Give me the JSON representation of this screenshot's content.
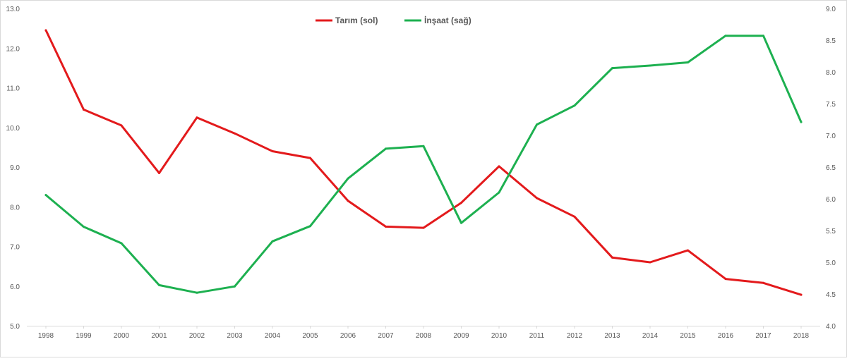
{
  "chart_data": {
    "type": "line",
    "title": "",
    "x": [
      "1998",
      "1999",
      "2000",
      "2001",
      "2002",
      "2003",
      "2004",
      "2005",
      "2006",
      "2007",
      "2008",
      "2009",
      "2010",
      "2011",
      "2012",
      "2013",
      "2014",
      "2015",
      "2016",
      "2017",
      "2018"
    ],
    "series": [
      {
        "name": "Tarım (sol)",
        "axis": "left",
        "color": "#e31a1c",
        "values": [
          12.45,
          10.45,
          10.05,
          8.85,
          10.25,
          9.85,
          9.4,
          9.23,
          8.15,
          7.5,
          7.47,
          8.1,
          9.02,
          8.22,
          7.75,
          6.72,
          6.6,
          6.9,
          6.18,
          6.08,
          5.78
        ]
      },
      {
        "name": "İnşaat (sağ)",
        "axis": "right",
        "color": "#1db050",
        "values": [
          6.06,
          5.56,
          5.3,
          4.64,
          4.52,
          4.62,
          5.33,
          5.57,
          6.32,
          6.79,
          6.83,
          5.62,
          6.1,
          7.17,
          7.47,
          8.06,
          8.1,
          8.15,
          8.57,
          8.57,
          7.21
        ]
      }
    ],
    "y_left": {
      "min": 5.0,
      "max": 13.0,
      "ticks": [
        "5.0",
        "6.0",
        "7.0",
        "8.0",
        "9.0",
        "10.0",
        "11.0",
        "12.0",
        "13.0"
      ]
    },
    "y_right": {
      "min": 4.0,
      "max": 9.0,
      "ticks": [
        "4.0",
        "4.5",
        "5.0",
        "5.5",
        "6.0",
        "6.5",
        "7.0",
        "7.5",
        "8.0",
        "8.5",
        "9.0"
      ]
    },
    "legend_position": "top-center",
    "grid": false
  }
}
